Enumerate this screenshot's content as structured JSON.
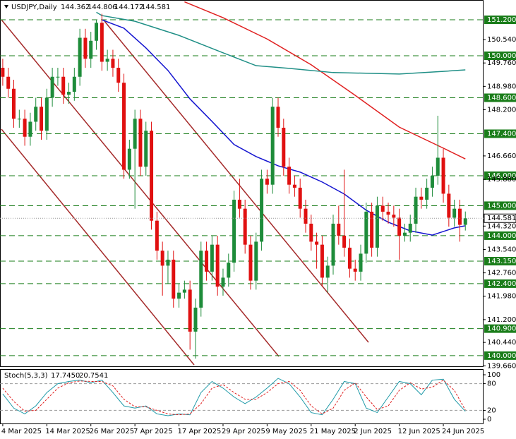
{
  "chart_data": [
    {
      "type": "candlestick",
      "title": "USDJPY,Daily",
      "xlim": [
        -0.5,
        87.3
      ],
      "ylim": [
        139.62,
        151.86
      ],
      "up_color": "#1e8c3a",
      "down_color": "#e01010",
      "open": [
        149.6,
        149.3,
        148.9,
        147.9,
        147.9,
        147.3,
        147.8,
        148.3,
        147.5,
        148.6,
        149.3,
        149.3,
        148.7,
        148.8,
        149.3,
        150.6,
        149.9,
        150.5,
        151.1,
        149.8,
        149.9,
        149.6,
        149.1,
        146.2,
        146.9,
        147.9,
        146.3,
        147.5,
        144.5,
        143.5,
        143.0,
        143.2,
        141.9,
        142.1,
        142.2,
        140.8,
        141.6,
        143.5,
        142.8,
        143.7,
        142.3,
        142.6,
        143.1,
        145.2,
        144.9,
        143.7,
        142.5,
        143.8,
        145.9,
        145.7,
        148.3,
        147.6,
        146.3,
        145.7,
        145.6,
        144.9,
        144.4,
        143.8,
        143.7,
        142.6,
        143.0,
        144.4,
        144.0,
        143.6,
        142.9,
        142.8,
        143.4,
        144.8,
        143.6,
        145.0,
        144.8,
        144.7,
        144.6,
        144.0,
        144.1,
        144.4,
        145.3,
        145.2,
        145.6,
        146.0,
        146.6,
        145.4,
        144.6,
        144.9,
        144.362
      ],
      "high": [
        149.9,
        149.6,
        149.2,
        148.2,
        148.2,
        148.1,
        148.6,
        148.6,
        148.9,
        149.6,
        149.6,
        149.6,
        149.1,
        149.6,
        150.9,
        150.9,
        150.8,
        151.2,
        151.4,
        150.2,
        150.2,
        149.9,
        149.4,
        147.2,
        148.2,
        148.2,
        147.8,
        147.8,
        144.8,
        143.8,
        143.5,
        143.5,
        142.4,
        142.5,
        142.5,
        141.9,
        143.8,
        143.8,
        144.0,
        144.0,
        142.9,
        143.4,
        145.5,
        145.9,
        145.2,
        144.0,
        144.1,
        146.2,
        146.2,
        148.6,
        148.6,
        147.9,
        146.6,
        146.0,
        145.9,
        145.2,
        144.7,
        144.1,
        144.0,
        143.3,
        144.7,
        145.0,
        146.2,
        143.9,
        143.2,
        143.7,
        145.1,
        145.1,
        145.3,
        145.3,
        145.1,
        145.0,
        144.9,
        144.4,
        144.7,
        145.6,
        145.6,
        145.9,
        146.3,
        148.0,
        146.9,
        145.7,
        145.2,
        145.2,
        144.806
      ],
      "low": [
        149.0,
        148.6,
        147.6,
        147.6,
        147.0,
        147.0,
        147.5,
        147.2,
        147.2,
        148.3,
        149.0,
        148.4,
        148.4,
        148.5,
        149.0,
        149.6,
        149.6,
        150.2,
        149.5,
        149.5,
        149.3,
        148.8,
        145.9,
        145.9,
        144.9,
        146.0,
        146.0,
        144.2,
        143.2,
        142.0,
        142.4,
        141.6,
        141.6,
        141.9,
        140.2,
        139.9,
        141.3,
        142.5,
        142.5,
        142.0,
        142.0,
        142.3,
        142.8,
        144.6,
        143.4,
        142.2,
        142.2,
        143.5,
        145.4,
        145.4,
        147.3,
        146.0,
        145.4,
        145.3,
        144.6,
        144.1,
        143.5,
        142.9,
        142.3,
        142.1,
        142.7,
        143.7,
        143.3,
        142.6,
        142.5,
        142.5,
        143.1,
        143.3,
        143.3,
        144.5,
        144.4,
        144.3,
        143.2,
        143.8,
        143.8,
        144.1,
        144.9,
        144.9,
        145.3,
        145.7,
        145.1,
        144.3,
        144.3,
        143.8,
        144.172
      ],
      "close": [
        149.3,
        148.9,
        147.9,
        147.9,
        147.3,
        147.8,
        148.3,
        147.5,
        148.6,
        149.3,
        149.3,
        148.7,
        148.8,
        149.3,
        150.6,
        149.9,
        150.5,
        151.1,
        149.8,
        149.9,
        149.6,
        149.1,
        146.2,
        146.9,
        147.9,
        146.3,
        147.5,
        144.5,
        143.5,
        143.0,
        143.2,
        141.9,
        142.1,
        142.2,
        140.8,
        141.6,
        143.5,
        142.8,
        143.7,
        142.3,
        142.6,
        143.1,
        145.2,
        144.9,
        143.7,
        142.5,
        143.8,
        145.9,
        145.7,
        148.3,
        147.6,
        146.3,
        145.7,
        145.6,
        144.9,
        144.4,
        143.8,
        143.7,
        142.6,
        143.0,
        144.4,
        144.0,
        143.6,
        142.9,
        142.8,
        143.4,
        144.8,
        143.6,
        145.0,
        144.8,
        144.7,
        144.6,
        144.0,
        144.1,
        144.4,
        145.3,
        145.2,
        145.6,
        146.0,
        146.6,
        145.4,
        144.6,
        144.9,
        144.362,
        144.581
      ],
      "lines": [
        {
          "color": "#e02020",
          "x": [
            33,
            40,
            48,
            56,
            64,
            72,
            80,
            84
          ],
          "values": [
            151.8,
            151.27,
            150.56,
            149.7,
            148.68,
            147.62,
            146.92,
            146.56
          ]
        },
        {
          "color": "#1f8f86",
          "x": [
            17,
            18,
            24,
            32,
            40,
            46,
            52,
            60,
            68,
            72,
            80,
            84
          ],
          "values": [
            151.45,
            151.34,
            151.15,
            150.68,
            150.1,
            149.67,
            149.58,
            149.44,
            149.41,
            149.39,
            149.48,
            149.53
          ]
        },
        {
          "color": "#1515d0",
          "x": [
            18,
            22,
            26,
            30,
            34,
            38,
            42,
            46,
            50,
            54,
            58,
            62,
            66,
            70,
            74,
            78,
            82,
            84
          ],
          "values": [
            151.2,
            150.92,
            150.26,
            149.51,
            148.56,
            147.81,
            147.04,
            146.64,
            146.33,
            146.12,
            145.79,
            145.39,
            144.85,
            144.45,
            144.16,
            144.02,
            144.26,
            144.33
          ]
        }
      ],
      "level_color": "#1a7d1a",
      "levels": [
        {
          "value": 151.2,
          "label": "151.200"
        },
        {
          "value": 150.0,
          "label": "150.000"
        },
        {
          "value": 148.6,
          "label": "148.600"
        },
        {
          "value": 147.4,
          "label": "147.400"
        },
        {
          "value": 146.0,
          "label": "146.000"
        },
        {
          "value": 145.0,
          "label": "145.000"
        },
        {
          "value": 144.0,
          "label": "144.000"
        },
        {
          "value": 143.15,
          "label": "143.150"
        },
        {
          "value": 142.4,
          "label": "142.400"
        },
        {
          "value": 140.9,
          "label": "140.900"
        },
        {
          "value": 140.0,
          "label": "140.000"
        }
      ],
      "yticks": [
        {
          "value": 150.54,
          "label": "150.540"
        },
        {
          "value": 149.76,
          "label": "149.760"
        },
        {
          "value": 148.98,
          "label": "148.980"
        },
        {
          "value": 148.2,
          "label": "148.200"
        },
        {
          "value": 146.66,
          "label": "146.660"
        },
        {
          "value": 145.88,
          "label": "145.880"
        },
        {
          "value": 144.32,
          "label": "144.320"
        },
        {
          "value": 143.54,
          "label": "143.540"
        },
        {
          "value": 142.76,
          "label": "142.760"
        },
        {
          "value": 141.98,
          "label": "141.980"
        },
        {
          "value": 141.2,
          "label": "141.200"
        },
        {
          "value": 140.44,
          "label": "140.440"
        },
        {
          "value": 139.66,
          "label": "139.660"
        }
      ],
      "xticks": [
        {
          "value": 0,
          "label": "4 Mar 2025"
        },
        {
          "value": 8,
          "label": "14 Mar 2025"
        },
        {
          "value": 16,
          "label": "26 Mar 2025"
        },
        {
          "value": 24,
          "label": "7 Apr 2025"
        },
        {
          "value": 32,
          "label": "17 Apr 2025"
        },
        {
          "value": 40,
          "label": "29 Apr 2025"
        },
        {
          "value": 48,
          "label": "9 May 2025"
        },
        {
          "value": 56,
          "label": "21 May 2025"
        },
        {
          "value": 64,
          "label": "2 Jun 2025"
        },
        {
          "value": 72,
          "label": "12 Jun 2025"
        },
        {
          "value": 80,
          "label": "24 Jun 2025"
        }
      ]
    },
    {
      "type": "line",
      "title": "Stoch(5,3,3)",
      "xlim": [
        -0.5,
        87.3
      ],
      "ylim": [
        -9.5,
        112.7
      ],
      "yticks": [
        100,
        80,
        20,
        0
      ],
      "levels": [
        80,
        20
      ],
      "series": [
        {
          "color": "#1f9aa8",
          "dash": false,
          "last_label": "17.7450",
          "x": [
            0,
            2,
            4,
            6,
            8,
            10,
            12,
            14,
            16,
            18,
            20,
            22,
            24,
            26,
            28,
            30,
            32,
            34,
            36,
            38,
            40,
            42,
            44,
            46,
            48,
            50,
            52,
            54,
            56,
            58,
            60,
            62,
            64,
            66,
            68,
            70,
            72,
            74,
            76,
            78,
            80,
            82,
            84
          ],
          "values": [
            57,
            25,
            12,
            30,
            60,
            80,
            85,
            88,
            82,
            88,
            60,
            30,
            25,
            30,
            12,
            8,
            12,
            10,
            60,
            85,
            70,
            50,
            35,
            50,
            70,
            92,
            80,
            50,
            15,
            10,
            45,
            85,
            80,
            25,
            15,
            50,
            85,
            80,
            55,
            88,
            90,
            45,
            17.745
          ]
        },
        {
          "color": "#e02020",
          "dash": true,
          "last_label": "20.7541",
          "x": [
            0,
            2,
            4,
            6,
            8,
            10,
            12,
            14,
            16,
            18,
            20,
            22,
            24,
            26,
            28,
            30,
            32,
            34,
            36,
            38,
            40,
            42,
            44,
            46,
            48,
            50,
            52,
            54,
            56,
            58,
            60,
            62,
            64,
            66,
            68,
            70,
            72,
            74,
            76,
            78,
            80,
            82,
            84
          ],
          "values": [
            70,
            40,
            18,
            20,
            45,
            70,
            82,
            86,
            85,
            85,
            75,
            45,
            28,
            28,
            20,
            12,
            10,
            12,
            35,
            70,
            78,
            60,
            45,
            45,
            60,
            80,
            85,
            65,
            30,
            12,
            25,
            65,
            82,
            50,
            22,
            30,
            65,
            82,
            68,
            72,
            88,
            65,
            20.7541
          ]
        }
      ]
    }
  ]
}
